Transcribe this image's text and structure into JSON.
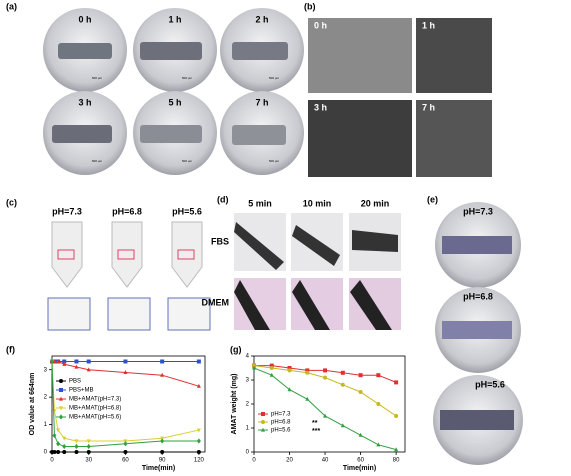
{
  "panels": {
    "a": {
      "label": "(a)",
      "times": [
        "0 h",
        "1 h",
        "2 h",
        "3 h",
        "5 h",
        "7 h"
      ],
      "scale": "500 μm"
    },
    "b": {
      "label": "(b)",
      "times": [
        "0 h",
        "1 h",
        "3 h",
        "7 h"
      ]
    },
    "c": {
      "label": "(c)",
      "conditions": [
        "pH=7.3",
        "pH=6.8",
        "pH=5.6"
      ]
    },
    "d": {
      "label": "(d)",
      "times": [
        "5 min",
        "10 min",
        "20 min"
      ],
      "media": [
        "FBS",
        "DMEM"
      ]
    },
    "e": {
      "label": "(e)",
      "conditions": [
        "pH=7.3",
        "pH=6.8",
        "pH=5.6"
      ]
    },
    "f": {
      "label": "(f)"
    },
    "g": {
      "label": "(g)"
    }
  },
  "chart_data": [
    {
      "type": "line",
      "x_label": "Time(min)",
      "y_label": "OD value at 664nm",
      "x": [
        0,
        2,
        5,
        10,
        20,
        30,
        60,
        90,
        120
      ],
      "xlim": [
        0,
        125
      ],
      "xticks": [
        0,
        30,
        60,
        90,
        120
      ],
      "ylim": [
        0,
        3.5
      ],
      "yticks": [
        0,
        1,
        2,
        3
      ],
      "series": [
        {
          "name": "PBS",
          "color": "#000000",
          "marker": "circle",
          "values": [
            0,
            0,
            0,
            0,
            0,
            0,
            0,
            0,
            0
          ]
        },
        {
          "name": "PBS+MB",
          "color": "#3050c8",
          "marker": "square",
          "values": [
            3.3,
            3.3,
            3.3,
            3.3,
            3.3,
            3.3,
            3.3,
            3.3,
            3.3
          ]
        },
        {
          "name": "MB+AMAT(pH=7.3)",
          "color": "#e03030",
          "marker": "triangle",
          "values": [
            3.3,
            3.3,
            3.3,
            3.2,
            3.1,
            3.0,
            2.9,
            2.8,
            2.4
          ]
        },
        {
          "name": "MB+AMAT(pH=6.8)",
          "color": "#d8d030",
          "marker": "triangle-down",
          "values": [
            3.3,
            1.5,
            0.8,
            0.5,
            0.4,
            0.4,
            0.4,
            0.5,
            0.8
          ]
        },
        {
          "name": "MB+AMAT(pH=5.6)",
          "color": "#30a040",
          "marker": "diamond",
          "values": [
            3.3,
            0.6,
            0.3,
            0.2,
            0.2,
            0.2,
            0.3,
            0.4,
            0.4
          ]
        }
      ]
    },
    {
      "type": "line",
      "x_label": "Time(min)",
      "y_label": "AMAT weight (mg)",
      "x": [
        0,
        10,
        20,
        30,
        40,
        50,
        60,
        70,
        80
      ],
      "xlim": [
        0,
        85
      ],
      "xticks": [
        0,
        20,
        40,
        60,
        80
      ],
      "ylim": [
        0,
        4
      ],
      "yticks": [
        0,
        1,
        2,
        3,
        4
      ],
      "annotations": [
        "**",
        "***"
      ],
      "series": [
        {
          "name": "pH=7.3",
          "color": "#e03030",
          "marker": "square",
          "values": [
            3.6,
            3.6,
            3.5,
            3.4,
            3.4,
            3.3,
            3.2,
            3.2,
            2.9
          ]
        },
        {
          "name": "pH=6.8",
          "color": "#c8b820",
          "marker": "circle",
          "values": [
            3.6,
            3.5,
            3.4,
            3.3,
            3.1,
            2.8,
            2.5,
            2.0,
            1.5
          ]
        },
        {
          "name": "pH=5.6",
          "color": "#30a040",
          "marker": "triangle",
          "values": [
            3.5,
            3.2,
            2.6,
            2.2,
            1.5,
            1.1,
            0.7,
            0.3,
            0.1
          ]
        }
      ]
    }
  ]
}
